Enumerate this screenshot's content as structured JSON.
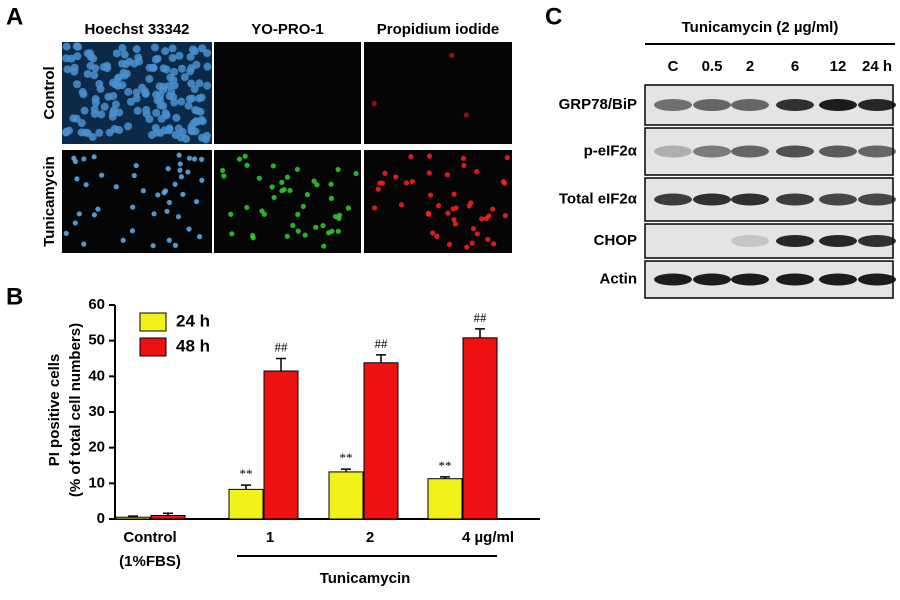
{
  "panel_labels": {
    "a": "A",
    "b": "B",
    "c": "C"
  },
  "microscopy": {
    "columns": [
      "Hoechst 33342",
      "YO-PRO-1",
      "Propidium iodide"
    ],
    "rows": [
      "Control",
      "Tunicamycin"
    ]
  },
  "blot": {
    "header": "Tunicamycin (2 µg/ml)",
    "lanes": [
      "C",
      "0.5",
      "2",
      "6",
      "12",
      "24 h"
    ],
    "rows": [
      "GRP78/BiP",
      "p-eIF2α",
      "Total eIF2α",
      "CHOP",
      "Actin"
    ]
  },
  "chart_data": {
    "type": "bar",
    "ylabel": [
      "PI positive cells",
      "(% of total cell numbers)"
    ],
    "categories": [
      "Control",
      "1",
      "2",
      "4 µg/ml"
    ],
    "category_note": "(1%FBS)",
    "group_label": "Tunicamycin",
    "series": [
      {
        "name": "24 h",
        "color": "#f2f21a",
        "values": [
          0.5,
          8.3,
          13.2,
          11.3
        ],
        "errors": [
          0.3,
          1.2,
          0.8,
          0.5
        ],
        "labels": [
          null,
          "**",
          "**",
          "**"
        ]
      },
      {
        "name": "48 h",
        "color": "#ee1111",
        "values": [
          1.0,
          41.5,
          43.8,
          50.8
        ],
        "errors": [
          0.6,
          3.5,
          2.2,
          2.5
        ],
        "labels": [
          null,
          "##",
          "##",
          "##"
        ]
      }
    ],
    "ylim": [
      0,
      60
    ],
    "yticks": [
      0,
      10,
      20,
      30,
      40,
      50,
      60
    ]
  }
}
